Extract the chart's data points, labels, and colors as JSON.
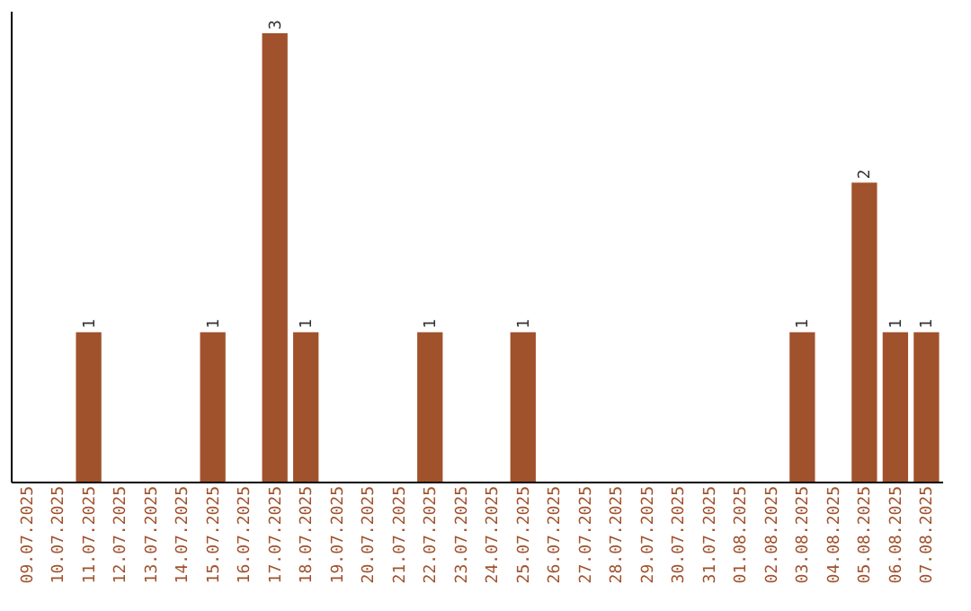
{
  "chart_data": {
    "type": "bar",
    "categories": [
      "09.07.2025",
      "10.07.2025",
      "11.07.2025",
      "12.07.2025",
      "13.07.2025",
      "14.07.2025",
      "15.07.2025",
      "16.07.2025",
      "17.07.2025",
      "18.07.2025",
      "19.07.2025",
      "20.07.2025",
      "21.07.2025",
      "22.07.2025",
      "23.07.2025",
      "24.07.2025",
      "25.07.2025",
      "26.07.2025",
      "27.07.2025",
      "28.07.2025",
      "29.07.2025",
      "30.07.2025",
      "31.07.2025",
      "01.08.2025",
      "02.08.2025",
      "03.08.2025",
      "04.08.2025",
      "05.08.2025",
      "06.08.2025",
      "07.08.2025"
    ],
    "values": [
      null,
      null,
      1,
      null,
      null,
      null,
      1,
      null,
      3,
      1,
      null,
      null,
      null,
      1,
      null,
      null,
      1,
      null,
      null,
      null,
      null,
      null,
      null,
      null,
      null,
      1,
      null,
      2,
      1,
      1
    ],
    "color": "#a0522d",
    "ylim": [
      0,
      3.15
    ],
    "data_labels": true,
    "grid": false,
    "tick_labels": "x"
  }
}
